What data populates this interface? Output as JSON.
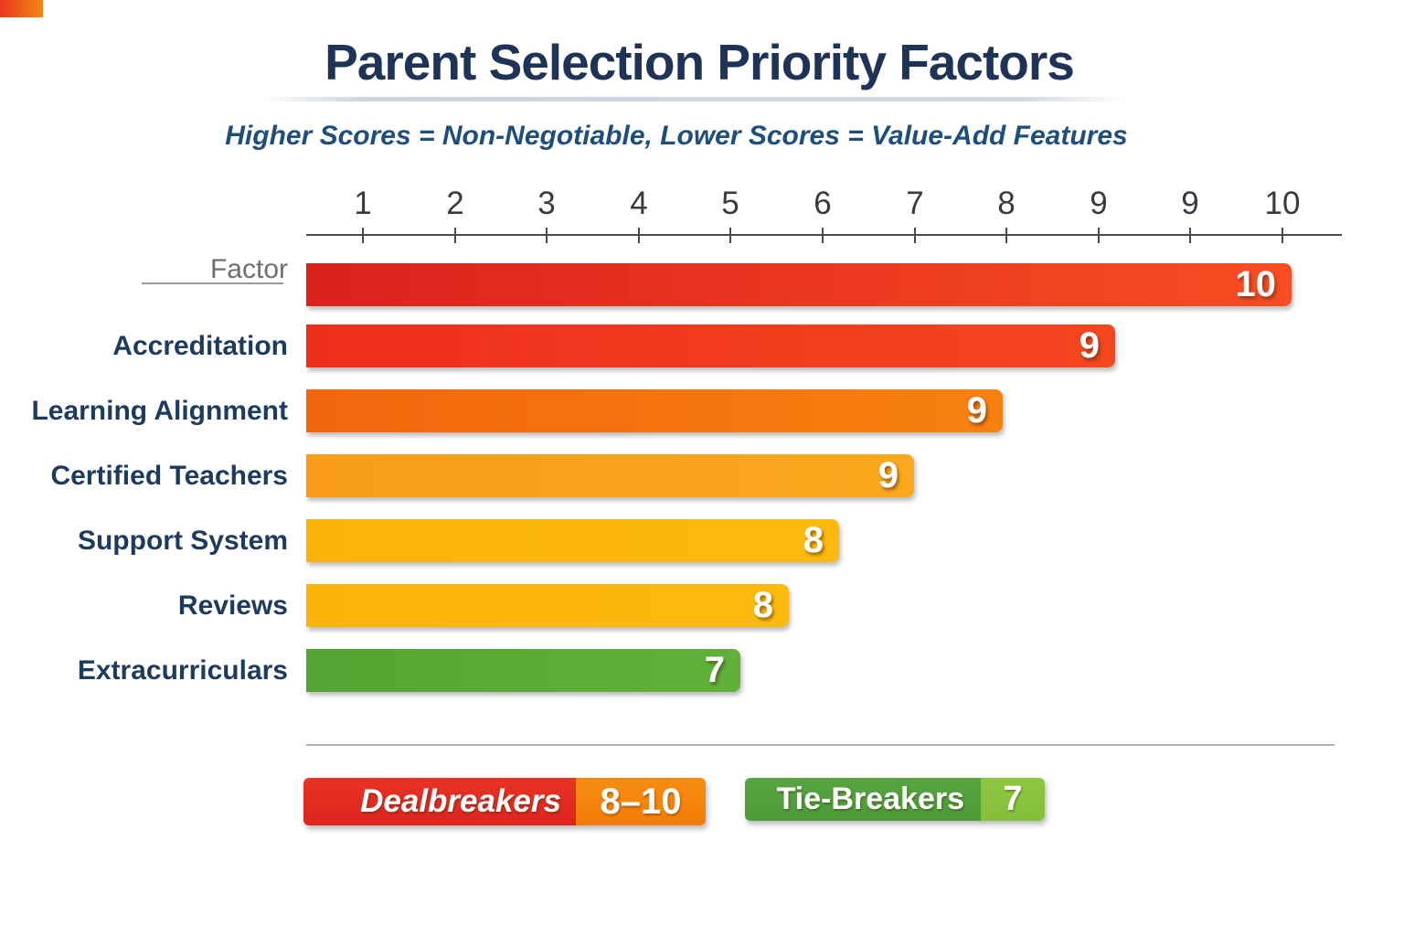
{
  "header": {
    "title": "Parent Selection Priority Factors",
    "subtitle": "Higher Scores = Non-Negotiable, Lower Scores = Value-Add Features"
  },
  "chart_data": {
    "type": "bar",
    "orientation": "horizontal",
    "title": "Parent Selection Priority Factors",
    "subtitle": "Higher Scores = Non-Negotiable, Lower Scores = Value-Add Features",
    "axis_position": "top",
    "axis_tick_labels": [
      "1",
      "2",
      "3",
      "4",
      "5",
      "6",
      "7",
      "8",
      "9",
      "9",
      "10"
    ],
    "axis_range": [
      0,
      10
    ],
    "grid": false,
    "categories": [
      "Factor",
      "Accreditation",
      "Learning Alignment",
      "Certified Teachers",
      "Support System",
      "Reviews",
      "Extracurriculars"
    ],
    "values": [
      10,
      9,
      9,
      9,
      8,
      8,
      7
    ],
    "category_label_styles": [
      "header",
      "normal",
      "normal",
      "normal",
      "normal",
      "normal",
      "normal"
    ],
    "bar_colors": [
      {
        "from": "#da211e",
        "to": "#f94d22"
      },
      {
        "from": "#ee2e1d",
        "to": "#f4461f"
      },
      {
        "from": "#f2660d",
        "to": "#f7810f"
      },
      {
        "from": "#f89c19",
        "to": "#faa81e"
      },
      {
        "from": "#fbb30c",
        "to": "#fcb90e"
      },
      {
        "from": "#fbb30c",
        "to": "#fcb90e"
      },
      {
        "from": "#54a433",
        "to": "#60b13b"
      }
    ],
    "value_label_color": "#ffffff",
    "legend_position": "bottom"
  },
  "legend": {
    "dealbreakers": {
      "label": "Dealbreakers",
      "range": "8–10",
      "label_bg": "#e02a20",
      "range_bg": "#f5820b"
    },
    "tiebreakers": {
      "label": "Tie-Breakers",
      "range": "7",
      "label_bg": "#4f9e3d",
      "range_bg": "#8ac33e"
    }
  },
  "colors": {
    "title": "#1e3355",
    "subtitle": "#1d4e7c",
    "category_label": "#1d3a5f",
    "header_label": "#6f6f6f",
    "axis": "#4c4c4c"
  }
}
